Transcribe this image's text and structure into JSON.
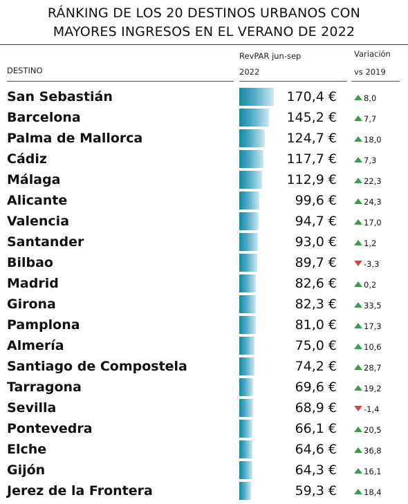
{
  "title_line1": "RÁNKING DE LOS 20 DESTINOS URBANOS CON",
  "title_line2": "MAYORES INGRESOS EN EL VERANO DE 2022",
  "headers": {
    "destino": "DESTINO",
    "revpar_line1": "RevPAR jun-sep",
    "revpar_line2": "2022",
    "variacion_line1": "Variación",
    "variacion_line2": "vs 2019"
  },
  "colors": {
    "bar": "#1787a6",
    "up": "#3f9a50",
    "down": "#d9453b"
  },
  "chart_data": {
    "type": "table",
    "title": "RÁNKING DE LOS 20 DESTINOS URBANOS CON MAYORES INGRESOS EN EL VERANO DE 2022",
    "columns": [
      "DESTINO",
      "RevPAR jun-sep 2022",
      "Variación vs 2019"
    ],
    "xlim": [
      0,
      170.4
    ],
    "rows": [
      {
        "destino": "San Sebastián",
        "revpar": 170.4,
        "revpar_label": "170,4 €",
        "variacion": 8.0,
        "variacion_label": "8,0"
      },
      {
        "destino": "Barcelona",
        "revpar": 145.2,
        "revpar_label": "145,2 €",
        "variacion": 7.7,
        "variacion_label": "7,7"
      },
      {
        "destino": "Palma de Mallorca",
        "revpar": 124.7,
        "revpar_label": "124,7 €",
        "variacion": 18.0,
        "variacion_label": "18,0"
      },
      {
        "destino": "Cádiz",
        "revpar": 117.7,
        "revpar_label": "117,7 €",
        "variacion": 7.3,
        "variacion_label": "7,3"
      },
      {
        "destino": "Málaga",
        "revpar": 112.9,
        "revpar_label": "112,9 €",
        "variacion": 22.3,
        "variacion_label": "22,3"
      },
      {
        "destino": "Alicante",
        "revpar": 99.6,
        "revpar_label": "99,6 €",
        "variacion": 24.3,
        "variacion_label": "24,3"
      },
      {
        "destino": "Valencia",
        "revpar": 94.7,
        "revpar_label": "94,7 €",
        "variacion": 17.0,
        "variacion_label": "17,0"
      },
      {
        "destino": "Santander",
        "revpar": 93.0,
        "revpar_label": "93,0 €",
        "variacion": 1.2,
        "variacion_label": "1,2"
      },
      {
        "destino": "Bilbao",
        "revpar": 89.7,
        "revpar_label": "89,7 €",
        "variacion": -3.3,
        "variacion_label": "-3,3"
      },
      {
        "destino": "Madrid",
        "revpar": 82.6,
        "revpar_label": "82,6 €",
        "variacion": 0.2,
        "variacion_label": "0,2"
      },
      {
        "destino": "Girona",
        "revpar": 82.3,
        "revpar_label": "82,3 €",
        "variacion": 33.5,
        "variacion_label": "33,5"
      },
      {
        "destino": "Pamplona",
        "revpar": 81.0,
        "revpar_label": "81,0 €",
        "variacion": 17.3,
        "variacion_label": "17,3"
      },
      {
        "destino": "Almería",
        "revpar": 75.0,
        "revpar_label": "75,0 €",
        "variacion": 10.6,
        "variacion_label": "10,6"
      },
      {
        "destino": "Santiago de Compostela",
        "revpar": 74.2,
        "revpar_label": "74,2 €",
        "variacion": 28.7,
        "variacion_label": "28,7"
      },
      {
        "destino": "Tarragona",
        "revpar": 69.6,
        "revpar_label": "69,6 €",
        "variacion": 19.2,
        "variacion_label": "19,2"
      },
      {
        "destino": "Sevilla",
        "revpar": 68.9,
        "revpar_label": "68,9 €",
        "variacion": -1.4,
        "variacion_label": "-1,4"
      },
      {
        "destino": "Pontevedra",
        "revpar": 66.1,
        "revpar_label": "66,1 €",
        "variacion": 20.5,
        "variacion_label": "20,5"
      },
      {
        "destino": "Elche",
        "revpar": 64.6,
        "revpar_label": "64,6 €",
        "variacion": 36.8,
        "variacion_label": "36,8"
      },
      {
        "destino": "Gijón",
        "revpar": 64.3,
        "revpar_label": "64,3 €",
        "variacion": 16.1,
        "variacion_label": "16,1"
      },
      {
        "destino": "Jerez de la Frontera",
        "revpar": 59.3,
        "revpar_label": "59,3 €",
        "variacion": 18.4,
        "variacion_label": "18,4"
      }
    ]
  }
}
